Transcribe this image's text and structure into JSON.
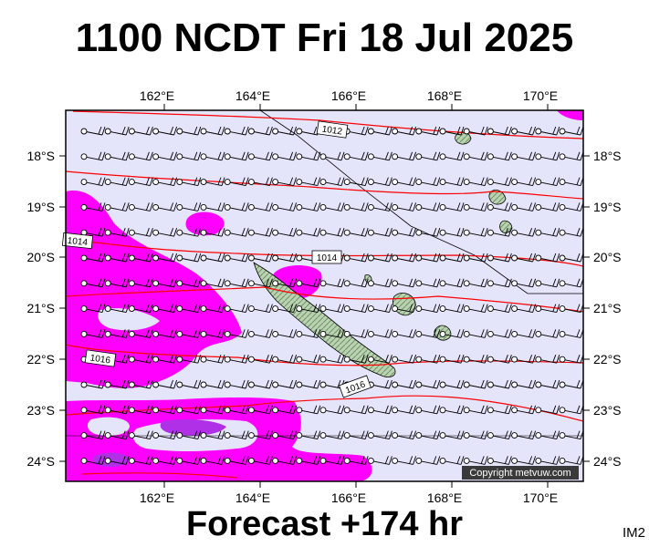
{
  "header": {
    "title": "1100 NCDT Fri 18 Jul 2025"
  },
  "footer": {
    "forecast": "Forecast +174 hr",
    "image_code": "IM2"
  },
  "map": {
    "lon_labels": [
      "162°E",
      "164°E",
      "166°E",
      "168°E",
      "170°E"
    ],
    "lat_labels": [
      "18°S",
      "19°S",
      "20°S",
      "21°S",
      "22°S",
      "23°S",
      "24°S"
    ],
    "isobar_labels": [
      "1012",
      "1014",
      "1014",
      "1016",
      "1016"
    ],
    "copyright": "Copyright metvuw.com",
    "colors": {
      "background": "#e4e4fb",
      "rain_light": "#ff00ff",
      "rain_heavy": "#b030e8",
      "isobar": "#ff0000",
      "land": "#a9c7a0",
      "wind": "#000000"
    }
  }
}
